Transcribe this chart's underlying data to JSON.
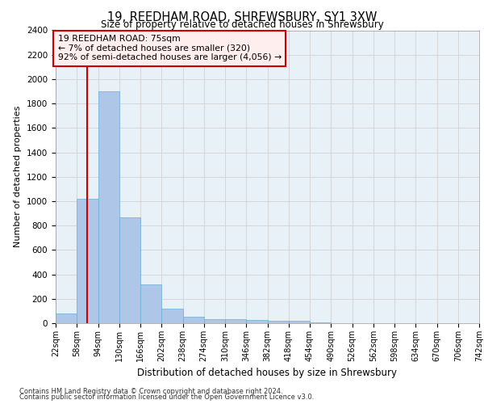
{
  "title": "19, REEDHAM ROAD, SHREWSBURY, SY1 3XW",
  "subtitle": "Size of property relative to detached houses in Shrewsbury",
  "xlabel": "Distribution of detached houses by size in Shrewsbury",
  "ylabel": "Number of detached properties",
  "annotation_line1": "19 REEDHAM ROAD: 75sqm",
  "annotation_line2": "← 7% of detached houses are smaller (320)",
  "annotation_line3": "92% of semi-detached houses are larger (4,056) →",
  "property_size_sqm": 75,
  "bin_edges": [
    22,
    58,
    94,
    130,
    166,
    202,
    238,
    274,
    310,
    346,
    382,
    418,
    454,
    490,
    526,
    562,
    598,
    634,
    670,
    706,
    742
  ],
  "bar_heights": [
    80,
    1020,
    1900,
    870,
    320,
    120,
    50,
    35,
    30,
    25,
    20,
    20,
    5,
    3,
    2,
    2,
    1,
    1,
    1,
    1
  ],
  "bar_color": "#aec6e8",
  "bar_edgecolor": "#6aaed6",
  "vline_color": "#cc0000",
  "vline_x": 75,
  "ylim": [
    0,
    2400
  ],
  "yticks": [
    0,
    200,
    400,
    600,
    800,
    1000,
    1200,
    1400,
    1600,
    1800,
    2000,
    2200,
    2400
  ],
  "grid_color": "#cccccc",
  "background_color": "#e8f0f8",
  "footer1": "Contains HM Land Registry data © Crown copyright and database right 2024.",
  "footer2": "Contains public sector information licensed under the Open Government Licence v3.0.",
  "annotation_box_color": "#ffeeee",
  "annotation_box_edgecolor": "#cc0000"
}
